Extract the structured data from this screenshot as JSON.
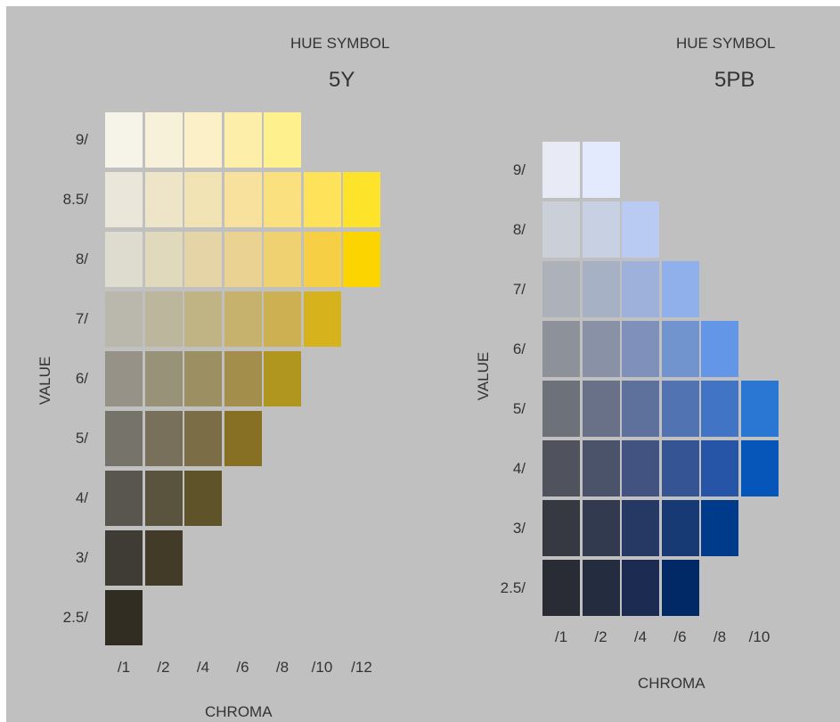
{
  "charts": [
    {
      "hue_title": "HUE SYMBOL",
      "hue_symbol": "5Y",
      "value_axis_label": "VALUE",
      "chroma_axis_label": "CHROMA",
      "rows": [
        {
          "label": "9/",
          "colors": [
            "#f6f3e9",
            "#f8f1da",
            "#fbf0c8",
            "#fdefaa",
            "#fff08e"
          ]
        },
        {
          "label": "8.5/",
          "colors": [
            "#ebe6da",
            "#eee5c9",
            "#f2e3b4",
            "#f7e19c",
            "#fbe07f",
            "#fde25a",
            "#fde42a"
          ]
        },
        {
          "label": "8/",
          "colors": [
            "#dedbcf",
            "#e1d9bc",
            "#e5d5a6",
            "#ead392",
            "#f0d171",
            "#f6cf45",
            "#fcd400"
          ]
        },
        {
          "label": "7/",
          "colors": [
            "#bab7ad",
            "#bcb69d",
            "#c0b384",
            "#c7b26d",
            "#cdb051",
            "#d6b21c"
          ]
        },
        {
          "label": "6/",
          "colors": [
            "#969287",
            "#989278",
            "#9c9062",
            "#a38f4b",
            "#b0951f"
          ]
        },
        {
          "label": "5/",
          "colors": [
            "#76736a",
            "#78705b",
            "#7b6e47",
            "#876f23"
          ]
        },
        {
          "label": "4/",
          "colors": [
            "#58564e",
            "#5a543f",
            "#5f5329"
          ]
        },
        {
          "label": "3/",
          "colors": [
            "#3e3c34",
            "#423b27"
          ]
        },
        {
          "label": "2.5/",
          "colors": [
            "#312d22"
          ]
        }
      ],
      "chroma_labels": [
        "/1",
        "/2",
        "/4",
        "/6",
        "/8",
        "/10",
        "/12"
      ]
    },
    {
      "hue_title": "HUE SYMBOL",
      "hue_symbol": "5PB",
      "value_axis_label": "VALUE",
      "chroma_axis_label": "CHROMA",
      "rows": [
        {
          "label": "9/",
          "colors": [
            "#e8eaf5",
            "#e4eafd"
          ]
        },
        {
          "label": "8/",
          "colors": [
            "#cbcfd8",
            "#c8d0e4",
            "#b9caf3"
          ]
        },
        {
          "label": "7/",
          "colors": [
            "#acb1ba",
            "#a7b1c6",
            "#9db1da",
            "#8fb0eb"
          ]
        },
        {
          "label": "6/",
          "colors": [
            "#8d919a",
            "#8891a6",
            "#7f91ba",
            "#7194cf",
            "#6396e6"
          ]
        },
        {
          "label": "5/",
          "colors": [
            "#6d717a",
            "#687187",
            "#5e719c",
            "#5173b1",
            "#4174c5",
            "#2a77d3"
          ]
        },
        {
          "label": "4/",
          "colors": [
            "#50535d",
            "#4b536a",
            "#425281",
            "#355494",
            "#2655a7",
            "#0656b9"
          ]
        },
        {
          "label": "3/",
          "colors": [
            "#363941",
            "#313a4f",
            "#263864",
            "#183a74",
            "#003a8b"
          ]
        },
        {
          "label": "2.5/",
          "colors": [
            "#292c35",
            "#242c40",
            "#1c2b51",
            "#002966"
          ]
        }
      ],
      "chroma_labels": [
        "/1",
        "/2",
        "/4",
        "/6",
        "/8",
        "/10"
      ]
    }
  ]
}
